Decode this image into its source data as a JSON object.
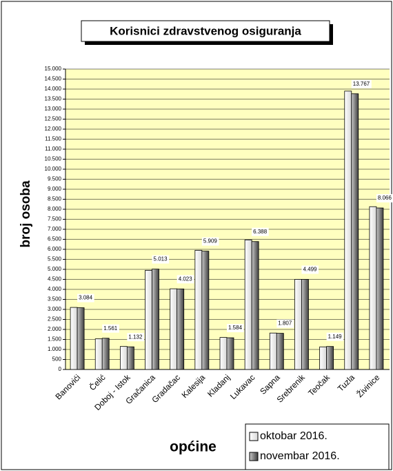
{
  "chart_data": {
    "type": "bar",
    "title": "Korisnici zdravstvenog osiguranja",
    "y_label": "broj osoba",
    "x_label": "općine",
    "categories": [
      "Banovići",
      "Čelić",
      "Doboj - Istok",
      "Gračanica",
      "Gradačac",
      "Kalesija",
      "Kladanj",
      "Lukavac",
      "Sapna",
      "Srebrenik",
      "Teočak",
      "Tuzla",
      "Živinice"
    ],
    "series": [
      {
        "name": "oktobar 2016.",
        "color": "#ffffff",
        "values": [
          3100,
          1530,
          1150,
          4950,
          4030,
          5950,
          1600,
          6470,
          1820,
          4500,
          1130,
          13900,
          8130
        ]
      },
      {
        "name": "novembar 2016.",
        "color": "#808080",
        "values": [
          3084,
          1561,
          1132,
          5013,
          4023,
          5909,
          1584,
          6388,
          1807,
          4499,
          1149,
          13767,
          8066
        ],
        "value_labels": [
          "3.084",
          "1.561",
          "1.132",
          "5.013",
          "4.023",
          "5.909",
          "1.584",
          "6.388",
          "1.807",
          "4.499",
          "1.149",
          "13.767",
          "8.066"
        ]
      }
    ],
    "ylim": [
      0,
      15000
    ],
    "yticks": [
      0,
      500,
      {
        "value": 1000,
        "label": "1.000"
      },
      {
        "value": 1500,
        "label": "1.500"
      },
      {
        "value": 2000,
        "label": "2.000"
      },
      {
        "value": 2500,
        "label": "2.500"
      },
      {
        "value": 3000,
        "label": "3.000"
      },
      {
        "value": 3500,
        "label": "3.500"
      },
      {
        "value": 4000,
        "label": "4.000"
      },
      {
        "value": 4500,
        "label": "4.500"
      },
      {
        "value": 5000,
        "label": "5.000"
      },
      {
        "value": 5500,
        "label": "5.500"
      },
      {
        "value": 6000,
        "label": "6.000"
      },
      {
        "value": 6500,
        "label": "6.500"
      },
      {
        "value": 7000,
        "label": "7.000"
      },
      {
        "value": 7500,
        "label": "7.500"
      },
      {
        "value": 8000,
        "label": "8.000"
      },
      {
        "value": 8500,
        "label": "8.500"
      },
      {
        "value": 9000,
        "label": "9.000"
      },
      {
        "value": 9500,
        "label": "9.500"
      },
      {
        "value": 10000,
        "label": "10.000"
      },
      {
        "value": 10500,
        "label": "10.500"
      },
      {
        "value": 11000,
        "label": "11.000"
      },
      {
        "value": 11500,
        "label": "11.500"
      },
      {
        "value": 12000,
        "label": "12.000"
      },
      {
        "value": 12500,
        "label": "12.500"
      },
      {
        "value": 13000,
        "label": "13.000"
      },
      {
        "value": 13500,
        "label": "13.500"
      },
      {
        "value": 14000,
        "label": "14.000"
      },
      {
        "value": 14500,
        "label": "14.500"
      },
      {
        "value": 15000,
        "label": "15.000"
      }
    ],
    "grid": true,
    "plot_background": "#ffffc0"
  }
}
